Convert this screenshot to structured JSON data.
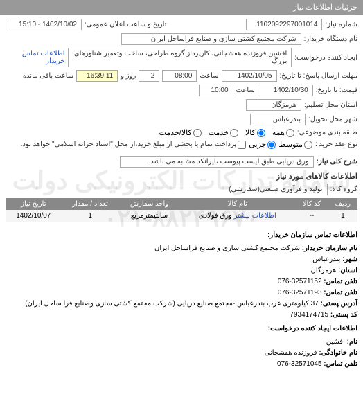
{
  "header": {
    "title": "جزئیات اطلاعات نیاز"
  },
  "form": {
    "number_label": "شماره نیاز:",
    "number_value": "1102092297001014",
    "announce_label": "تاریخ و ساعت اعلان عمومی:",
    "announce_value": "1402/10/02 - 15:10",
    "device_name_label": "نام دستگاه خریدار:",
    "device_name_value": "شرکت مجتمع کشتی سازی و صنایع فراساحل ایران",
    "requester_label": "ایجاد کننده درخواست:",
    "requester_value": "افشین فروزنده هفشجانی، کارپرداز گروه طراحی، ساخت وتعمیر شناورهای بزرگ",
    "contact_link": "اطلاعات تماس خریدار",
    "deadline_reply_label": "مهلت ارسال پاسخ: تا تاریخ:",
    "date1": "1402/10/05",
    "time_label": "ساعت",
    "time1": "08:00",
    "days_label": "روز و",
    "days_value": "2",
    "remaining_label": "ساعت باقی مانده",
    "remaining_value": "16:39:11",
    "quote_label": "قیمت: تا تاریخ:",
    "date2": "1402/10/30",
    "time2": "10:00",
    "province_label": "استان محل تسلیم:",
    "province_value": "هرمزگان",
    "city_label": "شهر محل تحویل:",
    "city_value": "بندرعباس",
    "group_label": "طبقه بندی موضوعی:",
    "radio_all": "همه",
    "radio_goods": "کالا",
    "radio_service": "خدمت",
    "radio_goods_service": "کالا/خدمت",
    "buy_type_label": "نوع عقد خرید :",
    "buy_sub": "متوسط",
    "buy_partial": "جزیی",
    "payment_note": "پرداخت تمام یا بخشی از مبلغ خرید،از محل \"اسناد خزانه اسلامی\" خواهد بود.",
    "desc_label": "شرح کلی نیاز:",
    "desc_value": "ورق دریایی طبق لیست پیوست ،ایرانکد مشابه می باشد."
  },
  "goods": {
    "section_title": "اطلاعات کالاهای مورد نیاز",
    "group_label": "گروه کالا:",
    "group_value": "تولید و فرآوری صنعتی(سفارشی)",
    "columns": [
      "ردیف",
      "کد کالا",
      "نام کالا",
      "واحد سفارش",
      "تعداد / مقدار",
      "تاریخ نیاز"
    ],
    "rows": [
      [
        "1",
        "--",
        "ورق فولادی",
        "سانتیمترمربع",
        "1",
        "1402/10/07"
      ]
    ],
    "detail_link": "اطلاعات بیشتر"
  },
  "contact": {
    "title": "اطلاعات تماس سازمان خریدار:",
    "org_label": "نام سازمان خریدار:",
    "org_value": "شرکت مجتمع کشتی سازی و صنایع فراساحل ایران",
    "city_label": "شهر:",
    "city_value": "بندرعباس",
    "province_label": "استان:",
    "province_value": "هرمزگان",
    "phone_label": "تلفن تماس:",
    "phone_value": "32571152-076",
    "fax_label": "تلفن تماس:",
    "fax_value": "32571193-076",
    "address_label": "آدرس پستی:",
    "address_value": "37 کیلومتری غرب بندرعباس -مجتمع صنایع دریایی (شرکت مجتمع کشتی سازی وصنایع فرا ساحل ایران)",
    "postal_label": "کد پستی:",
    "postal_value": "7934174715",
    "creator_title": "اطلاعات ایجاد کننده درخواست:",
    "name_label": "نام:",
    "name_value": "افشین",
    "lastname_label": "نام خانوادگی:",
    "lastname_value": "فروزنده هفشجانی",
    "creator_phone_label": "تلفن تماس:",
    "creator_phone_value": "32571045-076"
  },
  "watermark": "سامانه تدارکات الکترونیکی دولت\n۰۲۱-۸۸۲۴۹۶۷۰",
  "colors": {
    "header_bg": "#999999",
    "field_border": "#aaaaaa",
    "field_yellow": "#ffffcc",
    "link": "#2050c0",
    "table_header": "#888888",
    "row_bg": "#f5f5f5"
  }
}
